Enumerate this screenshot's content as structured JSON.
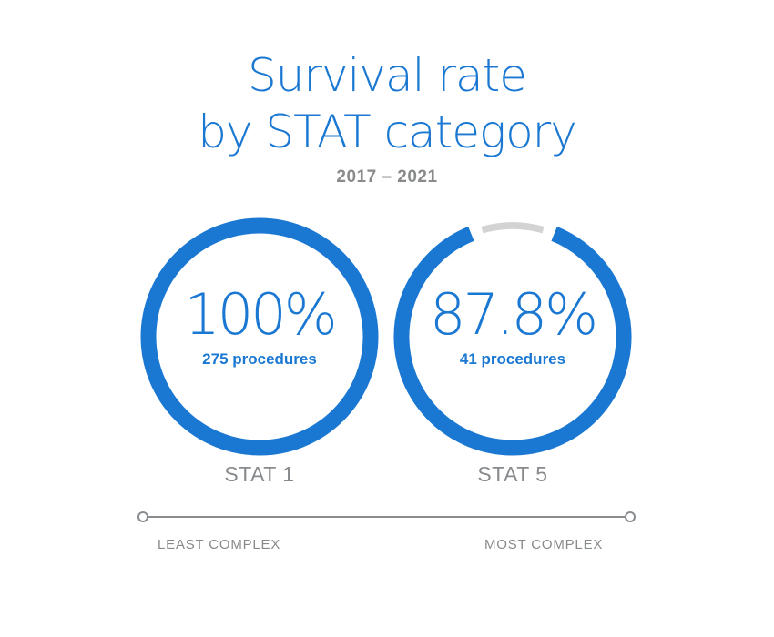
{
  "title_line1": "Survival rate",
  "title_line2": "by STAT category",
  "subtitle": "2017 – 2021",
  "colors": {
    "accent": "#1a78d2",
    "track": "#d3d3d3",
    "gray_text": "#878a8d",
    "axis_line": "#8a8d90"
  },
  "chart_data": {
    "type": "donut",
    "title": "Survival rate by STAT category",
    "subtitle": "2017 – 2021",
    "categories": [
      "STAT 1",
      "STAT 5"
    ],
    "values": [
      100,
      87.8
    ],
    "unit": "%",
    "value_labels": [
      "100%",
      "87.8%"
    ],
    "procedures": [
      275,
      41
    ],
    "procedure_labels": [
      "275 procedures",
      "41 procedures"
    ],
    "max": 100,
    "axis": {
      "left_label": "LEAST COMPLEX",
      "right_label": "MOST COMPLEX"
    }
  }
}
